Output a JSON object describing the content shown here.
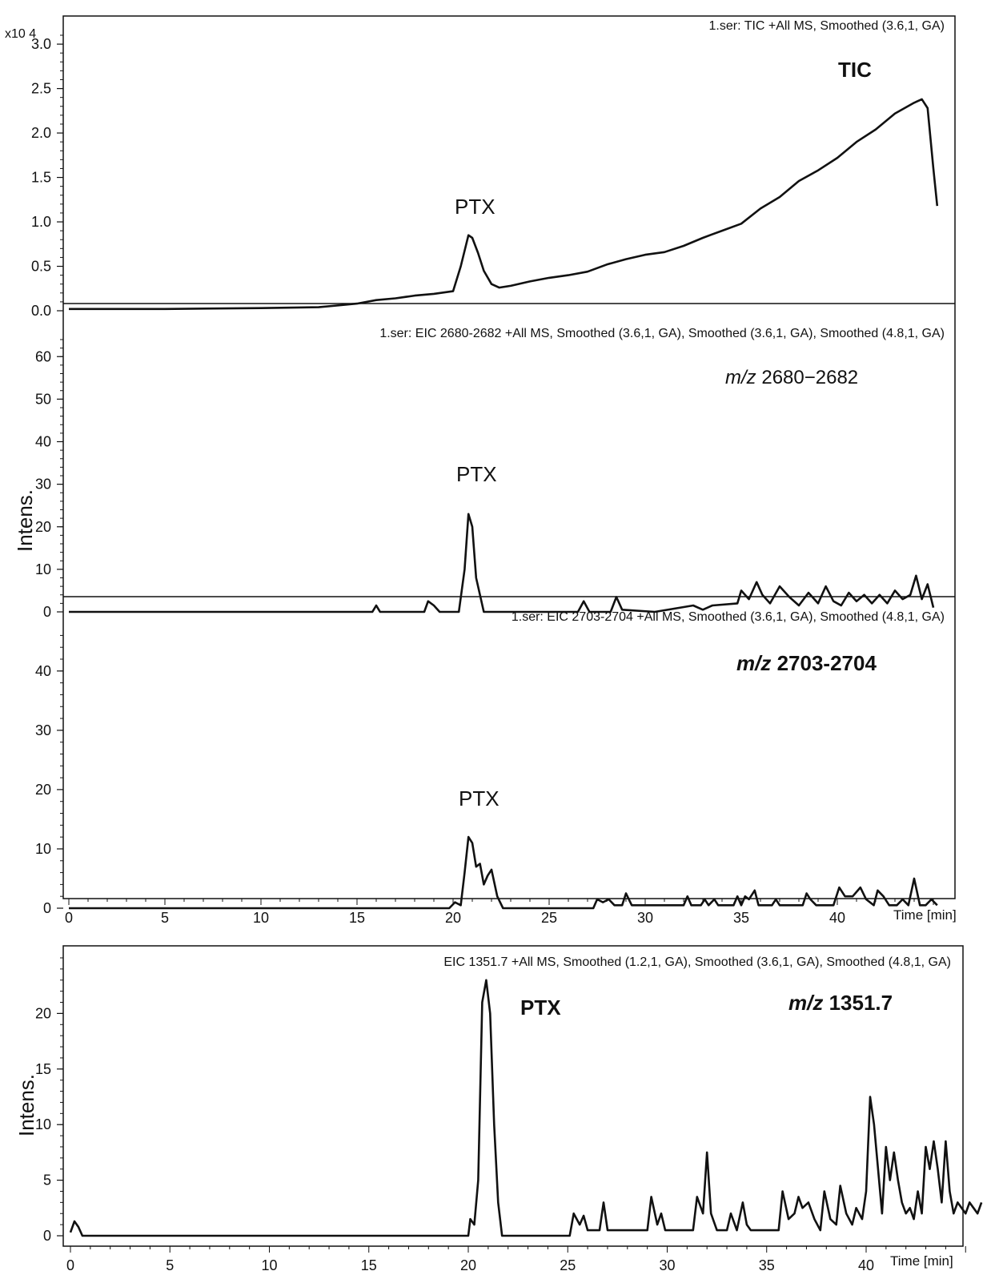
{
  "figure": {
    "y_axis_label": "Intens.",
    "x_axis_label": "Time [min]"
  },
  "chart_data": [
    {
      "type": "line",
      "trace_header": "1.ser: TIC +All MS, Smoothed (3.6,1, GA)",
      "annotation": "TIC",
      "peak_label": "PTX",
      "y_scale_label": "x10 4",
      "yticks": [
        "0.0",
        "0.5",
        "1.0",
        "1.5",
        "2.0",
        "2.5",
        "3.0"
      ],
      "ylim": [
        0,
        3.1
      ],
      "xlim": [
        0,
        46
      ],
      "series": [
        {
          "x": [
            0,
            5,
            10,
            13,
            15,
            16,
            17,
            18,
            19,
            20,
            20.4,
            20.8,
            21.0,
            21.3,
            21.6,
            22.0,
            22.4,
            23,
            24,
            25,
            26,
            27,
            28,
            29,
            30,
            31,
            32,
            33,
            34,
            35,
            36,
            37,
            38,
            39,
            40,
            41,
            42,
            43,
            44,
            44.4,
            44.7,
            45.0,
            45.2
          ],
          "y": [
            0.02,
            0.02,
            0.03,
            0.04,
            0.08,
            0.12,
            0.14,
            0.17,
            0.19,
            0.22,
            0.5,
            0.85,
            0.82,
            0.65,
            0.45,
            0.3,
            0.26,
            0.28,
            0.33,
            0.37,
            0.4,
            0.44,
            0.52,
            0.58,
            0.63,
            0.66,
            0.73,
            0.82,
            0.9,
            0.98,
            1.15,
            1.28,
            1.46,
            1.58,
            1.72,
            1.9,
            2.04,
            2.22,
            2.34,
            2.38,
            2.28,
            1.6,
            1.18
          ]
        }
      ]
    },
    {
      "type": "line",
      "trace_header": "1.ser: EIC 2680-2682 +All MS, Smoothed (3.6,1, GA), Smoothed (3.6,1, GA), Smoothed (4.8,1, GA)",
      "annotation": "m/z 2680−2682",
      "peak_label": "PTX",
      "yticks": [
        "0",
        "10",
        "20",
        "30",
        "40",
        "50",
        "60"
      ],
      "ylim": [
        0,
        64
      ],
      "xlim": [
        0,
        46
      ],
      "series": [
        {
          "x": [
            0,
            15.8,
            16.0,
            16.2,
            18.5,
            18.7,
            19.0,
            19.3,
            20.3,
            20.6,
            20.8,
            21.0,
            21.2,
            21.6,
            26.5,
            26.8,
            27.1,
            28.2,
            28.5,
            28.8,
            30.5,
            32.5,
            33.0,
            33.5,
            34.8,
            35.0,
            35.4,
            35.8,
            36.1,
            36.5,
            37.0,
            37.5,
            38.0,
            38.5,
            39.0,
            39.4,
            39.8,
            40.2,
            40.6,
            41.0,
            41.4,
            41.8,
            42.2,
            42.6,
            43.0,
            43.4,
            43.8,
            44.1,
            44.4,
            44.7,
            45.0
          ],
          "y": [
            0,
            0,
            1.5,
            0,
            0,
            2.5,
            1.5,
            0,
            0,
            10,
            23,
            20,
            8,
            0,
            0,
            2.5,
            0,
            0,
            3.5,
            0.5,
            0,
            1.5,
            0.5,
            1.5,
            2,
            5,
            3,
            7,
            4,
            2,
            6,
            3.5,
            1.5,
            4.5,
            2,
            6,
            2.5,
            1.5,
            4.5,
            2.5,
            4,
            2,
            4,
            2,
            5,
            3,
            4,
            8.5,
            3,
            6.5,
            1
          ]
        }
      ]
    },
    {
      "type": "line",
      "trace_header": "1.ser: EIC 2703-2704 +All MS, Smoothed (3.6,1, GA), Smoothed (4.8,1, GA)",
      "annotation": "m/z 2703-2704",
      "peak_label": "PTX",
      "yticks": [
        "0",
        "10",
        "20",
        "30",
        "40"
      ],
      "ylim": [
        0,
        47
      ],
      "xlim": [
        0,
        46
      ],
      "series": [
        {
          "x": [
            0,
            19.8,
            20.1,
            20.4,
            20.6,
            20.8,
            21.0,
            21.2,
            21.4,
            21.6,
            21.8,
            22.0,
            22.3,
            22.6,
            27.3,
            27.5,
            27.8,
            28.1,
            28.4,
            28.8,
            29.0,
            29.3,
            32.0,
            32.2,
            32.4,
            32.9,
            33.1,
            33.3,
            33.6,
            33.8,
            34.1,
            34.6,
            34.8,
            35.0,
            35.2,
            35.4,
            35.7,
            35.9,
            36.2,
            36.6,
            36.8,
            37.0,
            38.2,
            38.4,
            38.6,
            38.9,
            39.8,
            40.1,
            40.4,
            40.8,
            41.2,
            41.5,
            41.9,
            42.1,
            42.4,
            42.7,
            43.1,
            43.4,
            43.7,
            44.0,
            44.3,
            44.6,
            44.9,
            45.2
          ],
          "y": [
            0,
            0,
            1,
            0.5,
            6,
            12,
            11,
            7,
            7.5,
            4,
            5.5,
            6.5,
            2,
            0,
            0,
            1.5,
            1,
            1.5,
            0.5,
            0.5,
            2.5,
            0.5,
            0.5,
            2,
            0.5,
            0.5,
            1.5,
            0.5,
            1.5,
            0.5,
            0.5,
            0.5,
            2,
            0.5,
            2,
            1.5,
            3,
            0.5,
            0.5,
            0.5,
            1.5,
            0.5,
            0.5,
            2.5,
            1.5,
            0.5,
            0.5,
            3.5,
            2,
            2,
            3.5,
            1.5,
            0.5,
            3,
            2,
            0.5,
            0.5,
            1.5,
            0.5,
            5,
            0.5,
            0.5,
            1.5,
            0.5
          ]
        }
      ]
    },
    {
      "type": "line",
      "trace_header": "EIC 1351.7 +All MS, Smoothed (1.2,1, GA), Smoothed (3.6,1, GA), Smoothed (4.8,1, GA)",
      "annotation": "m/z 1351.7",
      "peak_label": "PTX",
      "yticks": [
        "0",
        "5",
        "10",
        "15",
        "20"
      ],
      "ylim": [
        0,
        25
      ],
      "xlim": [
        0,
        46
      ],
      "series": [
        {
          "x": [
            0,
            0.1,
            0.2,
            0.4,
            0.6,
            20.0,
            20.1,
            20.3,
            20.5,
            20.7,
            20.9,
            21.1,
            21.3,
            21.5,
            21.7,
            25.1,
            25.3,
            25.6,
            25.8,
            26.0,
            26.2,
            26.6,
            26.8,
            27.0,
            29.0,
            29.2,
            29.5,
            29.7,
            29.9,
            30.2,
            31.3,
            31.5,
            31.8,
            32.0,
            32.2,
            32.5,
            33.0,
            33.2,
            33.5,
            33.8,
            34.0,
            34.2,
            35.6,
            35.8,
            36.1,
            36.4,
            36.6,
            36.8,
            37.1,
            37.4,
            37.7,
            37.9,
            38.2,
            38.5,
            38.7,
            39.0,
            39.3,
            39.5,
            39.8,
            40.0,
            40.2,
            40.4,
            40.6,
            40.8,
            41.0,
            41.2,
            41.4,
            41.6,
            41.8,
            42.0,
            42.2,
            42.4,
            42.6,
            42.8,
            43.0,
            43.2,
            43.4,
            43.6,
            43.8,
            44.0,
            44.2,
            44.4,
            44.6,
            44.8,
            45.0,
            45.2,
            45.4,
            45.6,
            45.8
          ],
          "y": [
            0.3,
            0.8,
            1.3,
            0.8,
            0,
            0,
            1.5,
            1,
            5,
            21,
            23,
            20,
            10,
            3,
            0,
            0,
            2,
            1,
            1.8,
            0.5,
            0.5,
            0.5,
            3,
            0.5,
            0.5,
            3.5,
            1,
            2,
            0.5,
            0.5,
            0.5,
            3.5,
            2,
            7.5,
            2,
            0.5,
            0.5,
            2,
            0.5,
            3,
            1,
            0.5,
            0.5,
            4,
            1.5,
            2,
            3.5,
            2.5,
            3,
            1.5,
            0.5,
            4,
            1.5,
            1,
            4.5,
            2,
            1,
            2.5,
            1.5,
            4,
            12.5,
            10,
            6,
            2,
            8,
            5,
            7.5,
            5,
            3,
            2,
            2.5,
            1.5,
            4,
            2,
            8,
            6,
            8.5,
            6,
            3,
            8.5,
            4,
            2,
            3,
            2.5,
            2,
            3,
            2.5,
            2,
            3
          ]
        }
      ]
    }
  ],
  "x_ticks": [
    "0",
    "5",
    "10",
    "15",
    "20",
    "25",
    "30",
    "35",
    "40"
  ]
}
